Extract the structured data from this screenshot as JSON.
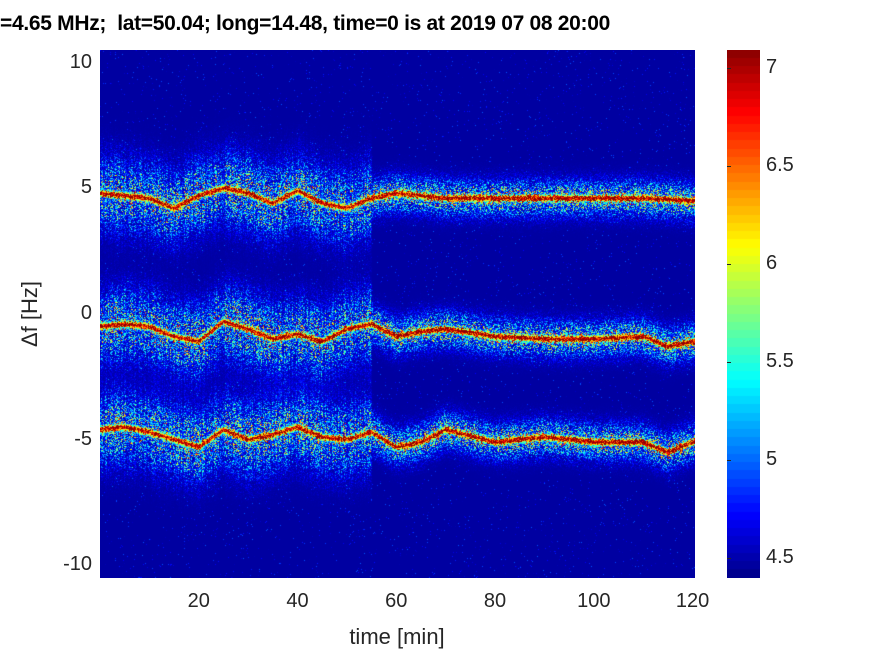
{
  "chart_data": {
    "type": "heatmap",
    "title": "=4.65 MHz;  lat=50.04; long=14.48, time=0 is at 2019 07 08 20:00",
    "xlabel": "time [min]",
    "ylabel": "Δf [Hz]",
    "xlim": [
      0,
      120.5
    ],
    "ylim": [
      -10.5,
      10.5
    ],
    "xticks": [
      20,
      40,
      60,
      80,
      100,
      120
    ],
    "yticks": [
      10,
      5,
      0,
      -5,
      -10
    ],
    "colorbar": {
      "colormap": "jet",
      "clim": [
        4.4,
        7.09
      ],
      "ticks": [
        7,
        6.5,
        6,
        5.5,
        5,
        4.5
      ]
    },
    "background_level": 4.45,
    "bands": [
      {
        "name": "band-upper",
        "peak": 7.0,
        "t": [
          0,
          10,
          15,
          20,
          25,
          30,
          35,
          40,
          45,
          50,
          55,
          60,
          70,
          80,
          90,
          100,
          110,
          120
        ],
        "df": [
          4.8,
          4.6,
          4.2,
          4.7,
          5.0,
          4.8,
          4.4,
          4.9,
          4.4,
          4.2,
          4.6,
          4.8,
          4.6,
          4.6,
          4.6,
          4.6,
          4.6,
          4.5
        ]
      },
      {
        "name": "band-middle",
        "peak": 7.0,
        "t": [
          0,
          5,
          10,
          15,
          20,
          25,
          30,
          35,
          40,
          45,
          50,
          55,
          60,
          65,
          70,
          80,
          90,
          100,
          110,
          115,
          120
        ],
        "df": [
          -0.5,
          -0.4,
          -0.5,
          -0.9,
          -1.1,
          -0.3,
          -0.6,
          -1.0,
          -0.8,
          -1.1,
          -0.6,
          -0.4,
          -0.9,
          -0.7,
          -0.6,
          -0.9,
          -1.0,
          -1.0,
          -0.9,
          -1.3,
          -1.1
        ]
      },
      {
        "name": "band-lower",
        "peak": 7.0,
        "t": [
          0,
          5,
          10,
          15,
          20,
          25,
          30,
          35,
          40,
          45,
          50,
          55,
          60,
          65,
          70,
          80,
          90,
          100,
          110,
          115,
          120
        ],
        "df": [
          -4.6,
          -4.5,
          -4.7,
          -5.0,
          -5.3,
          -4.6,
          -5.0,
          -4.8,
          -4.5,
          -4.9,
          -5.0,
          -4.7,
          -5.3,
          -5.1,
          -4.6,
          -5.1,
          -4.9,
          -5.1,
          -5.1,
          -5.5,
          -5.1
        ]
      }
    ]
  }
}
